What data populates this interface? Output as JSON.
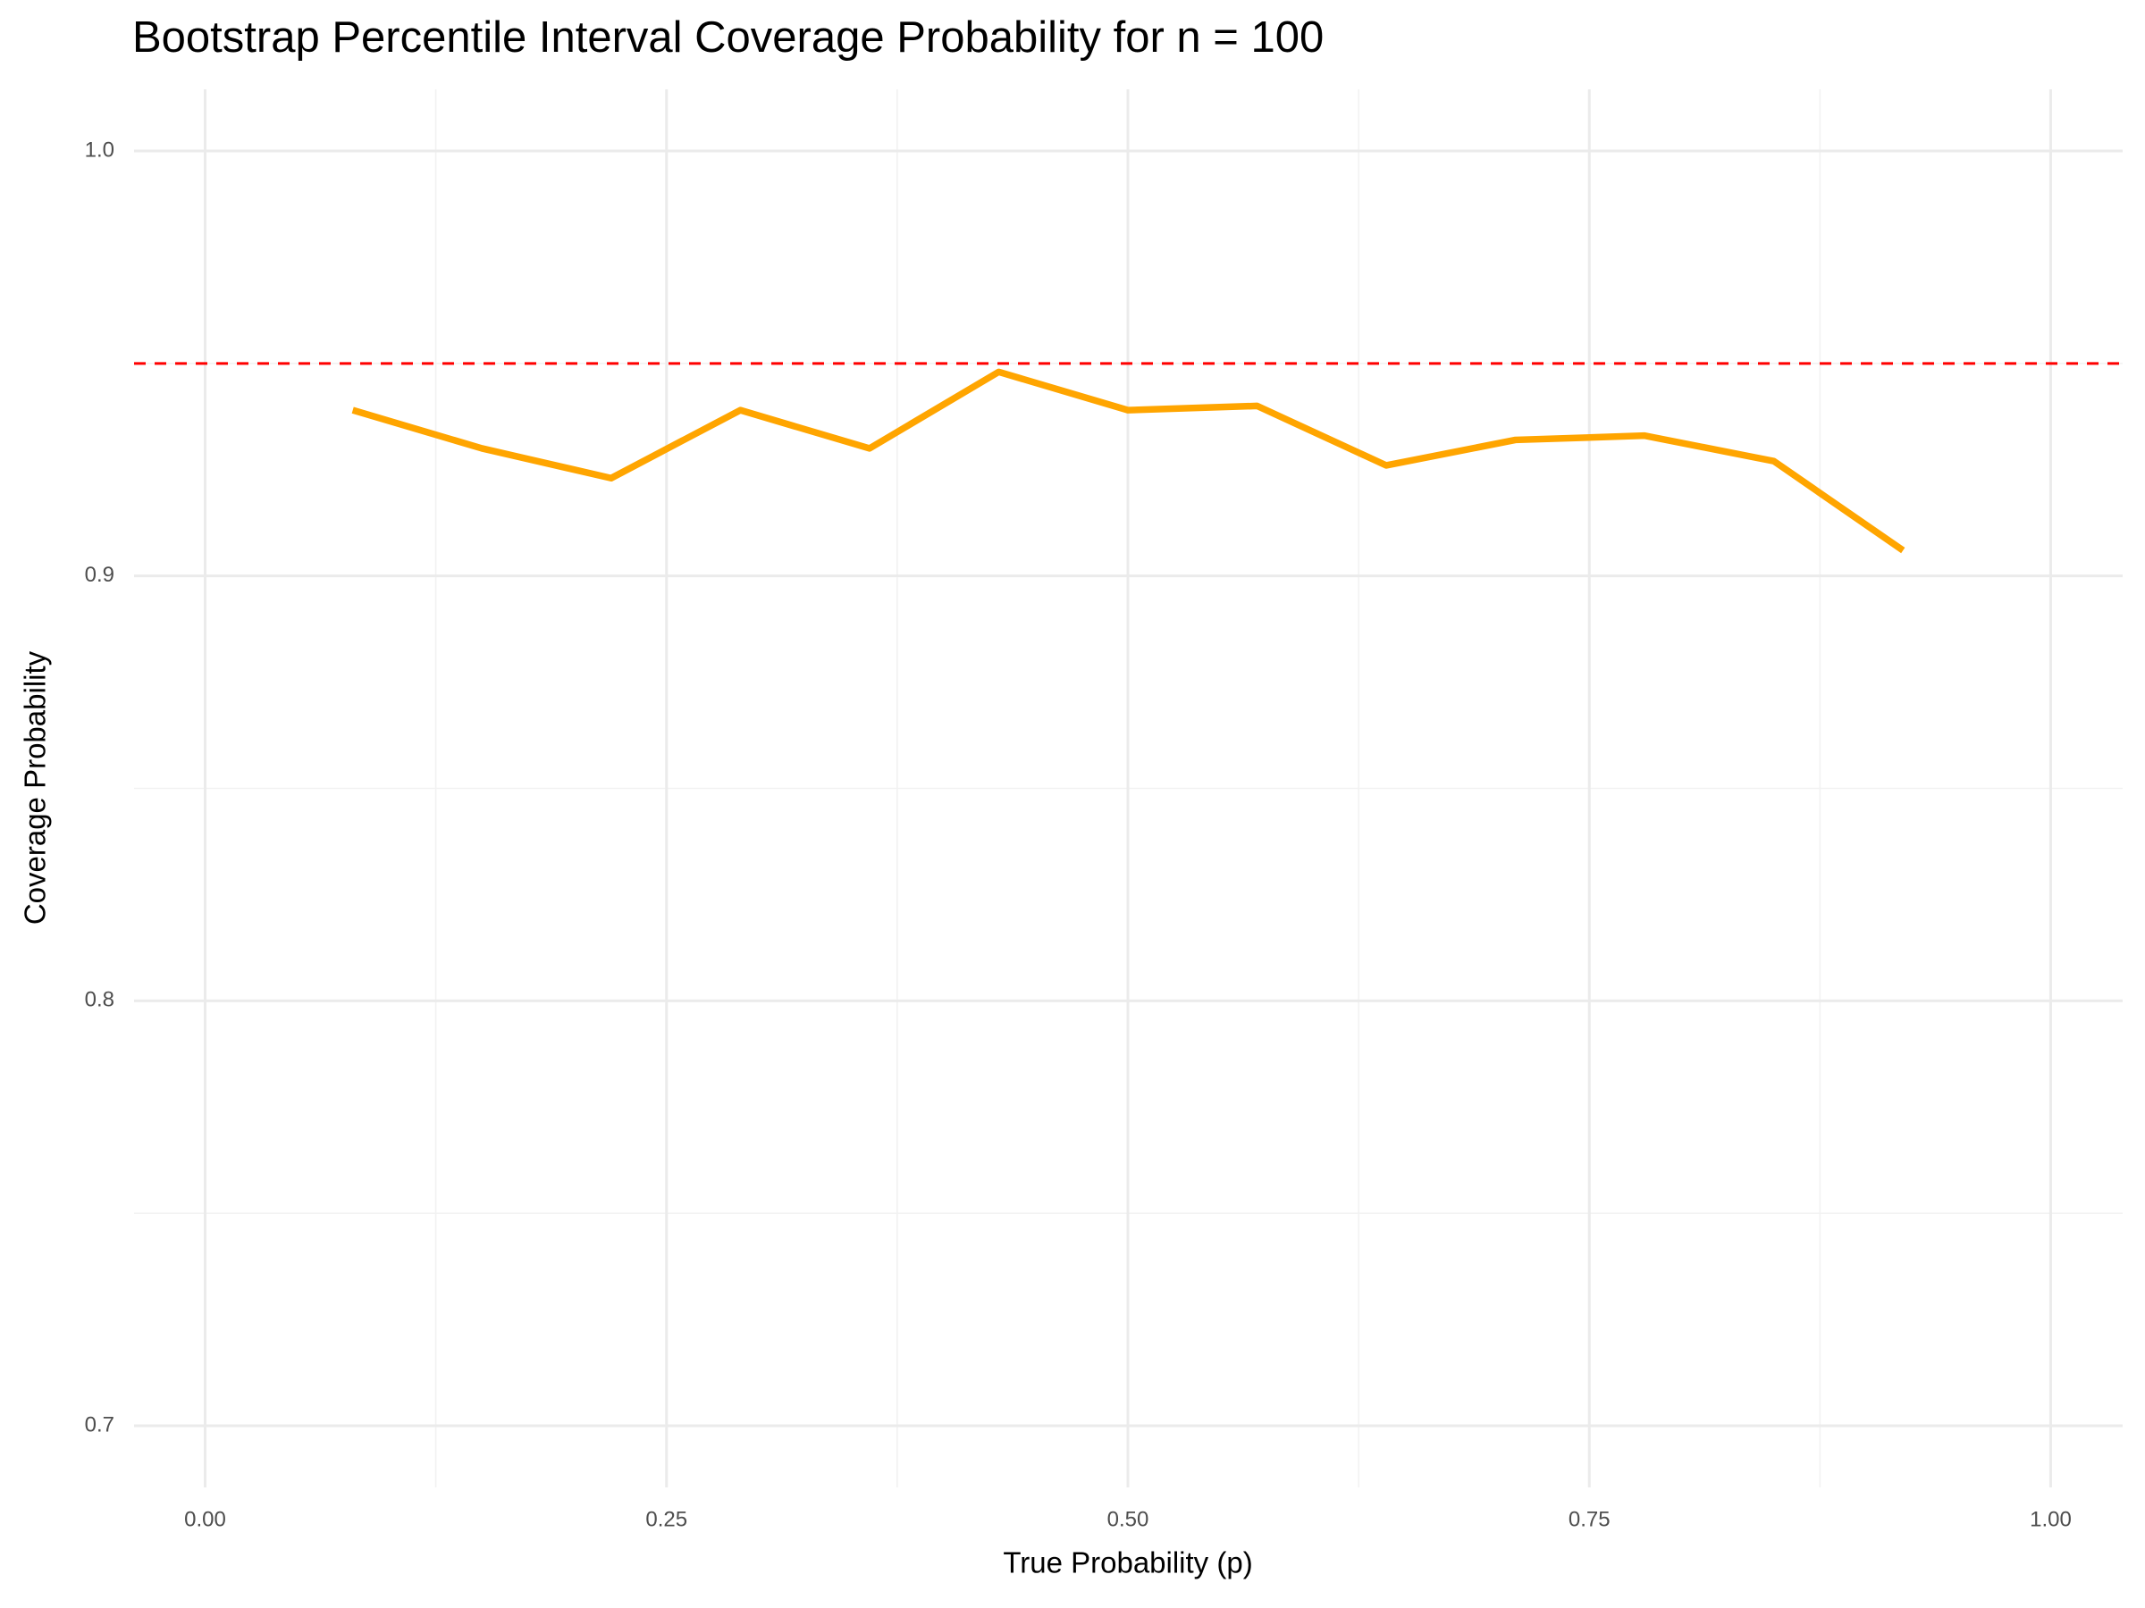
{
  "chart_data": {
    "type": "line",
    "title": "Bootstrap Percentile Interval Coverage Probability for n = 100",
    "x_label": "True Probability (p)",
    "y_label": "Coverage Probability",
    "x": [
      0.08,
      0.15,
      0.22,
      0.29,
      0.36,
      0.43,
      0.5,
      0.57,
      0.64,
      0.71,
      0.78,
      0.85,
      0.92
    ],
    "series": [
      {
        "color": "#FFA500",
        "values": [
          0.939,
          0.93,
          0.923,
          0.939,
          0.93,
          0.948,
          0.939,
          0.94,
          0.926,
          0.932,
          0.933,
          0.927,
          0.906
        ]
      }
    ],
    "reference_line": {
      "value": 0.95,
      "color": "#FF0000",
      "style": "dashed"
    },
    "xlim": [
      -0.0385,
      1.039
    ],
    "ylim": [
      0.6855,
      1.0145
    ],
    "xticks": [
      {
        "value": 0,
        "label": "0.00"
      },
      {
        "value": 0.25,
        "label": "0.25"
      },
      {
        "value": 0.5,
        "label": "0.50"
      },
      {
        "value": 0.75,
        "label": "0.75"
      },
      {
        "value": 1,
        "label": "1.00"
      }
    ],
    "yticks": [
      0.7,
      0.8,
      0.9,
      {
        "value": 1,
        "label": "1.0"
      }
    ],
    "x_minor_ticks": [
      0.125,
      0.375,
      0.625,
      0.875
    ],
    "y_minor_ticks": [
      0.75,
      0.85,
      0.95
    ],
    "grid": true
  }
}
